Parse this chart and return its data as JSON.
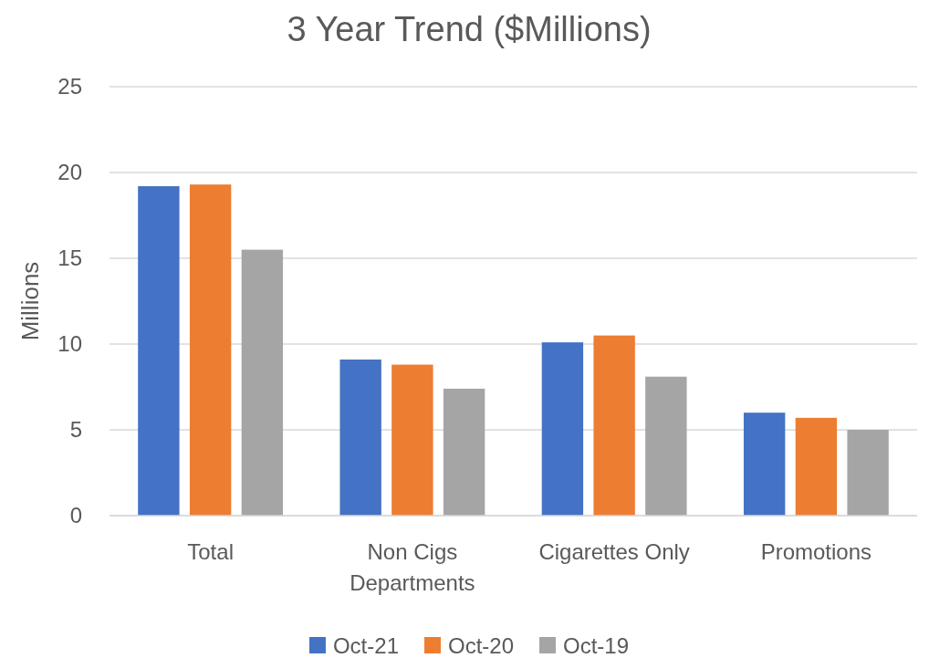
{
  "chart_data": {
    "type": "bar",
    "title": "3 Year Trend ($Millions)",
    "ylabel": "Millions",
    "categories": [
      "Total",
      "Non Cigs Departments",
      "Cigarettes Only",
      "Promotions"
    ],
    "series": [
      {
        "name": "Oct-21",
        "color": "#4472c4",
        "values": [
          19.2,
          9.1,
          10.1,
          6.0
        ]
      },
      {
        "name": "Oct-20",
        "color": "#ed7d31",
        "values": [
          19.3,
          8.8,
          10.5,
          5.7
        ]
      },
      {
        "name": "Oct-19",
        "color": "#a5a5a5",
        "values": [
          15.5,
          7.4,
          8.1,
          5.0
        ]
      }
    ],
    "ylim": [
      0,
      25
    ],
    "yticks": [
      0,
      5,
      10,
      15,
      20,
      25
    ],
    "grid": "y",
    "legend": "bottom"
  }
}
